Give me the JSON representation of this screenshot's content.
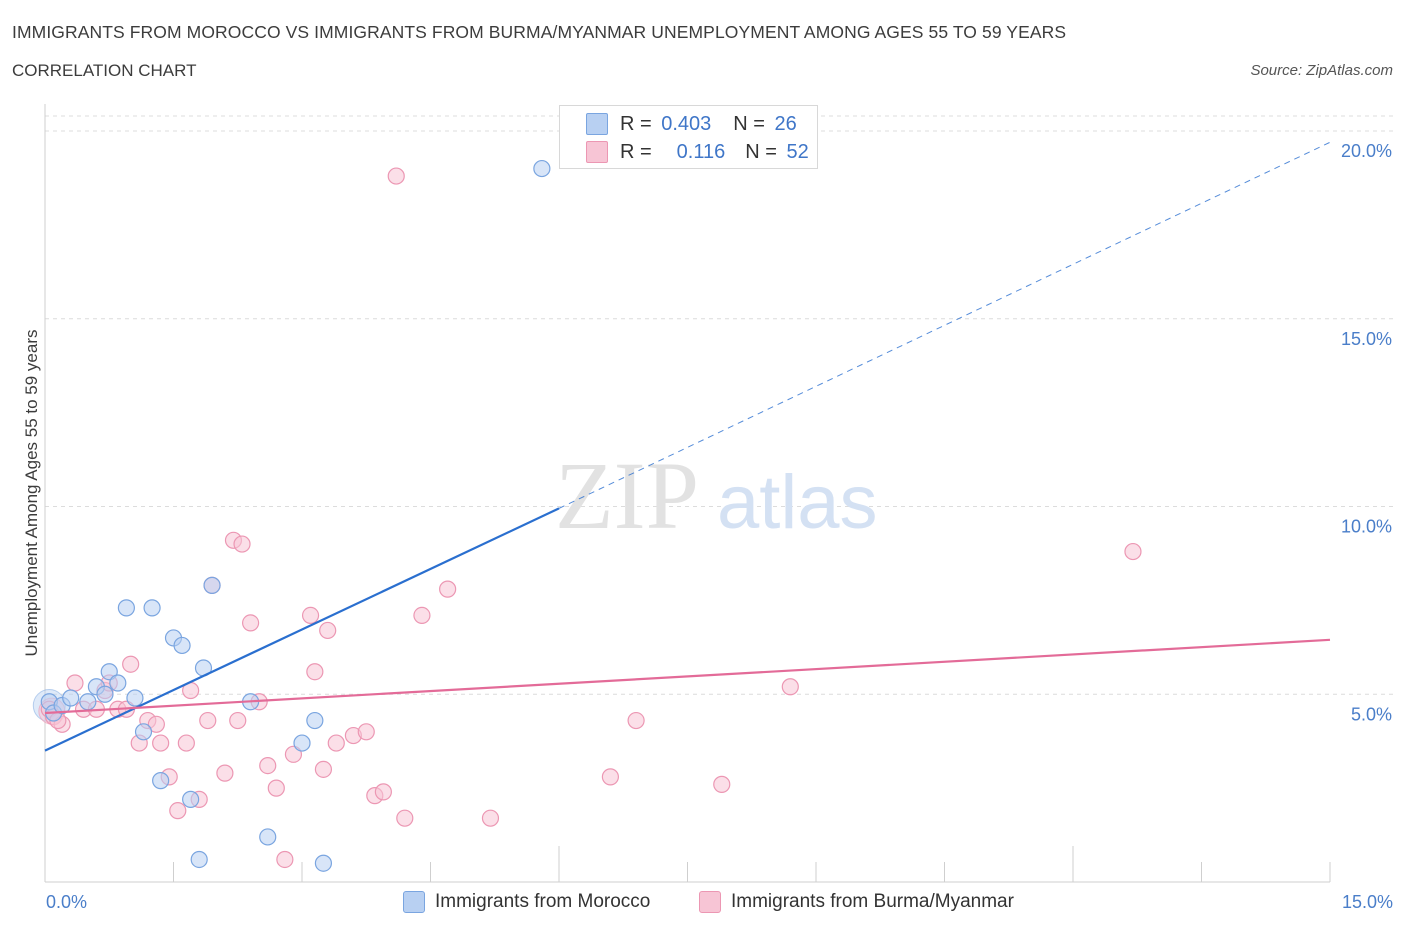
{
  "title": "IMMIGRANTS FROM MOROCCO VS IMMIGRANTS FROM BURMA/MYANMAR UNEMPLOYMENT AMONG AGES 55 TO 59 YEARS",
  "subtitle": "CORRELATION CHART",
  "source": "Source: ZipAtlas.com",
  "watermark": {
    "zip": "ZIP",
    "atlas": "atlas"
  },
  "colors": {
    "blue_fill": "#b8d0f2",
    "blue_stroke": "#7aa5e0",
    "blue_line": "#2a6fcf",
    "pink_fill": "#f7c5d5",
    "pink_stroke": "#ec97b3",
    "pink_line": "#e36b98",
    "grid": "#dcdcdc",
    "tick_text": "#4a7ec9"
  },
  "legend": {
    "rows": [
      {
        "r_label": "R =",
        "r_value": "0.403",
        "n_label": "N =",
        "n_value": "26"
      },
      {
        "r_label": "R =",
        "r_value": "0.116",
        "n_label": "N =",
        "n_value": "52"
      }
    ]
  },
  "chart_data": {
    "type": "scatter",
    "xlabel": "",
    "ylabel": "Unemployment Among Ages 55 to 59 years",
    "xlim": [
      0,
      15
    ],
    "ylim": [
      0,
      20
    ],
    "x_tick_labels": [
      "0.0%",
      "15.0%"
    ],
    "y_ticks": [
      5,
      10,
      15,
      20
    ],
    "y_tick_labels": [
      "5.0%",
      "10.0%",
      "15.0%",
      "20.0%"
    ],
    "grid": true,
    "legend_position": "bottom",
    "series": [
      {
        "name": "Immigrants from Morocco",
        "color": "blue",
        "trend": {
          "x": [
            0,
            6.0
          ],
          "y": [
            3.5,
            9.95
          ],
          "dashed_to": [
            15,
            19.7
          ]
        },
        "points": [
          [
            0.05,
            4.8
          ],
          [
            0.1,
            4.5
          ],
          [
            0.2,
            4.7
          ],
          [
            0.3,
            4.9
          ],
          [
            0.5,
            4.8
          ],
          [
            0.6,
            5.2
          ],
          [
            0.7,
            5.0
          ],
          [
            0.75,
            5.6
          ],
          [
            0.85,
            5.3
          ],
          [
            0.95,
            7.3
          ],
          [
            1.05,
            4.9
          ],
          [
            1.15,
            4.0
          ],
          [
            1.25,
            7.3
          ],
          [
            1.35,
            2.7
          ],
          [
            1.5,
            6.5
          ],
          [
            1.6,
            6.3
          ],
          [
            1.7,
            2.2
          ],
          [
            1.8,
            0.6
          ],
          [
            1.85,
            5.7
          ],
          [
            1.95,
            7.9
          ],
          [
            2.4,
            4.8
          ],
          [
            2.6,
            1.2
          ],
          [
            3.0,
            3.7
          ],
          [
            3.15,
            4.3
          ],
          [
            3.25,
            0.5
          ],
          [
            5.8,
            19.0
          ]
        ]
      },
      {
        "name": "Immigrants from Burma/Myanmar",
        "color": "pink",
        "trend": {
          "x": [
            0,
            15
          ],
          "y": [
            4.5,
            6.45
          ]
        },
        "points": [
          [
            0.05,
            4.6
          ],
          [
            0.1,
            4.4
          ],
          [
            0.2,
            4.2
          ],
          [
            0.35,
            5.3
          ],
          [
            0.45,
            4.6
          ],
          [
            0.6,
            4.6
          ],
          [
            0.7,
            5.1
          ],
          [
            0.75,
            5.3
          ],
          [
            0.85,
            4.6
          ],
          [
            0.95,
            4.6
          ],
          [
            1.0,
            5.8
          ],
          [
            1.1,
            3.7
          ],
          [
            1.2,
            4.3
          ],
          [
            1.3,
            4.2
          ],
          [
            1.35,
            3.7
          ],
          [
            1.45,
            2.8
          ],
          [
            1.55,
            1.9
          ],
          [
            1.65,
            3.7
          ],
          [
            1.7,
            5.1
          ],
          [
            1.8,
            2.2
          ],
          [
            1.9,
            4.3
          ],
          [
            1.95,
            7.9
          ],
          [
            2.1,
            2.9
          ],
          [
            2.2,
            9.1
          ],
          [
            2.25,
            4.3
          ],
          [
            2.3,
            9.0
          ],
          [
            2.4,
            6.9
          ],
          [
            2.5,
            4.8
          ],
          [
            2.6,
            3.1
          ],
          [
            2.7,
            2.5
          ],
          [
            2.8,
            0.6
          ],
          [
            2.9,
            3.4
          ],
          [
            3.1,
            7.1
          ],
          [
            3.15,
            5.6
          ],
          [
            3.25,
            3.0
          ],
          [
            3.3,
            6.7
          ],
          [
            3.4,
            3.7
          ],
          [
            3.6,
            3.9
          ],
          [
            3.75,
            4.0
          ],
          [
            3.85,
            2.3
          ],
          [
            3.95,
            2.4
          ],
          [
            4.1,
            18.8
          ],
          [
            4.2,
            1.7
          ],
          [
            4.4,
            7.1
          ],
          [
            4.7,
            7.8
          ],
          [
            5.2,
            1.7
          ],
          [
            6.6,
            2.8
          ],
          [
            6.9,
            4.3
          ],
          [
            7.9,
            2.6
          ],
          [
            8.7,
            5.2
          ],
          [
            12.7,
            8.8
          ],
          [
            0.15,
            4.3
          ]
        ]
      }
    ]
  },
  "bottom_legend": [
    {
      "label": "Immigrants from Morocco"
    },
    {
      "label": "Immigrants from Burma/Myanmar"
    }
  ]
}
